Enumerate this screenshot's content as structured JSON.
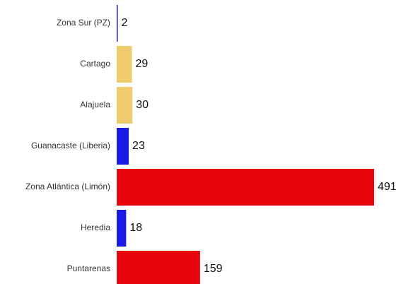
{
  "chart_data": {
    "type": "bar",
    "orientation": "horizontal",
    "categories": [
      "Zona Sur (PZ)",
      "Cartago",
      "Alajuela",
      "Guanacaste (Liberia)",
      "Zona Atlántica (Limón)",
      "Heredia",
      "Puntarenas"
    ],
    "values": [
      2,
      29,
      30,
      23,
      491,
      18,
      159
    ],
    "colors": [
      "#1a1ae6",
      "#efcb6e",
      "#efcb6e",
      "#1a1ae6",
      "#e8050e",
      "#1a1ae6",
      "#e8050e"
    ]
  }
}
